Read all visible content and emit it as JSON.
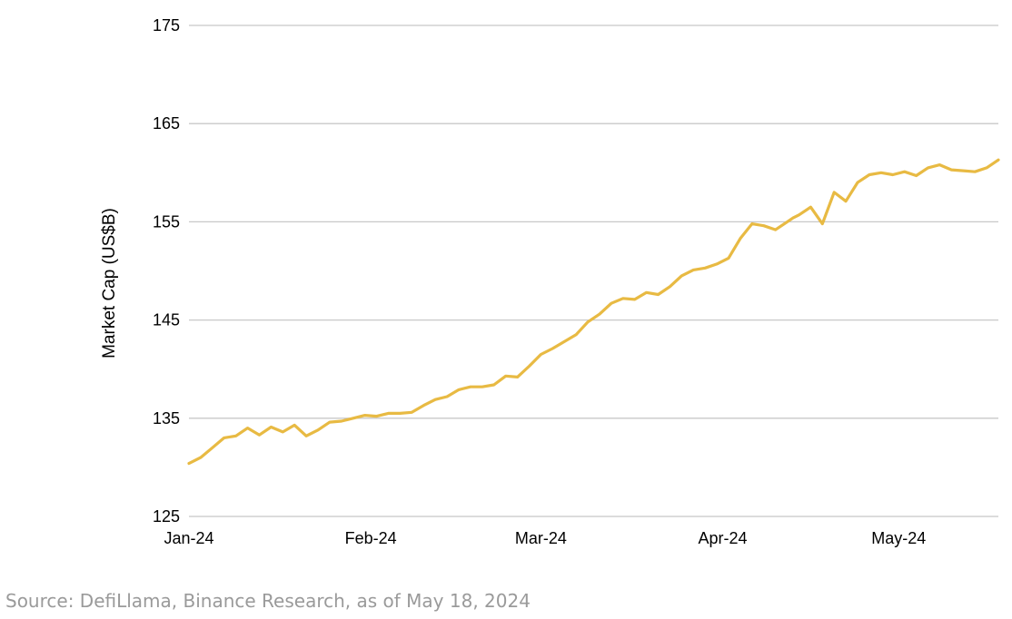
{
  "source_note": "Source: DefiLlama, Binance Research, as of May 18, 2024",
  "chart_data": {
    "type": "line",
    "title": "",
    "xlabel": "",
    "ylabel": "Market Cap (US$B)",
    "ylim": [
      125,
      175
    ],
    "yticks": [
      "125",
      "135",
      "145",
      "155",
      "165",
      "175"
    ],
    "xticks": [
      "Jan-24",
      "Feb-24",
      "Mar-24",
      "Apr-24",
      "May-24"
    ],
    "xrange": [
      "2024-01-01",
      "2024-05-18"
    ],
    "grid": true,
    "legend": "none",
    "colors": {
      "line": "#E8BA43",
      "grid": "#C8C8C8"
    },
    "series": [
      {
        "x": [
          "2024-01-01",
          "2024-01-03",
          "2024-01-05",
          "2024-01-07",
          "2024-01-09",
          "2024-01-11",
          "2024-01-13",
          "2024-01-15",
          "2024-01-17",
          "2024-01-19",
          "2024-01-21",
          "2024-01-23",
          "2024-01-25",
          "2024-01-27",
          "2024-01-29",
          "2024-01-31",
          "2024-02-02",
          "2024-02-04",
          "2024-02-06",
          "2024-02-08",
          "2024-02-10",
          "2024-02-12",
          "2024-02-14",
          "2024-02-16",
          "2024-02-18",
          "2024-02-20",
          "2024-02-22",
          "2024-02-24",
          "2024-02-26",
          "2024-02-28",
          "2024-03-01",
          "2024-03-03",
          "2024-03-05",
          "2024-03-07",
          "2024-03-09",
          "2024-03-11",
          "2024-03-13",
          "2024-03-15",
          "2024-03-17",
          "2024-03-19",
          "2024-03-21",
          "2024-03-23",
          "2024-03-25",
          "2024-03-27",
          "2024-03-29",
          "2024-03-31",
          "2024-04-02",
          "2024-04-04",
          "2024-04-06",
          "2024-04-08",
          "2024-04-10",
          "2024-04-12",
          "2024-04-13",
          "2024-04-14",
          "2024-04-16",
          "2024-04-18",
          "2024-04-20",
          "2024-04-22",
          "2024-04-24",
          "2024-04-26",
          "2024-04-28",
          "2024-04-30",
          "2024-05-02",
          "2024-05-04",
          "2024-05-06",
          "2024-05-08",
          "2024-05-10",
          "2024-05-12",
          "2024-05-14",
          "2024-05-16",
          "2024-05-18"
        ],
        "y": [
          130.4,
          131.0,
          132.0,
          133.0,
          133.2,
          134.0,
          133.3,
          134.1,
          133.6,
          134.3,
          133.2,
          133.8,
          134.6,
          134.7,
          135.0,
          135.3,
          135.2,
          135.5,
          135.5,
          135.6,
          136.3,
          136.9,
          137.2,
          137.9,
          138.2,
          138.2,
          138.4,
          139.3,
          139.2,
          140.3,
          141.5,
          142.1,
          142.8,
          143.5,
          144.8,
          145.6,
          146.7,
          147.2,
          147.1,
          147.8,
          147.6,
          148.4,
          149.5,
          150.1,
          150.3,
          150.7,
          151.3,
          153.3,
          154.8,
          154.6,
          154.2,
          155.0,
          155.4,
          155.7,
          156.5,
          154.8,
          158.0,
          157.1,
          159.0,
          159.8,
          160.0,
          159.8,
          160.1,
          159.7,
          160.5,
          160.8,
          160.3,
          160.2,
          160.1,
          160.5,
          161.3
        ]
      }
    ]
  }
}
